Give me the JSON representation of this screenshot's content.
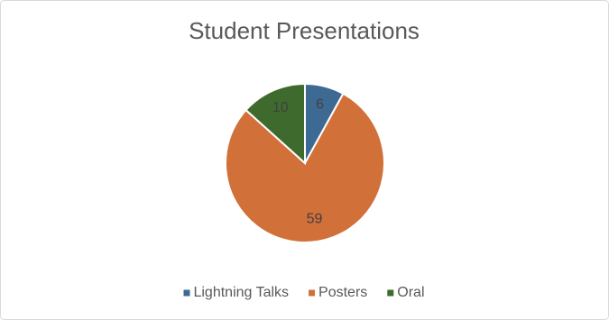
{
  "chart_data": {
    "type": "pie",
    "title": "Student Presentations",
    "categories": [
      "Lightning Talks",
      "Posters",
      "Oral"
    ],
    "values": [
      6,
      59,
      10
    ],
    "colors": [
      "#3d6a93",
      "#d2703a",
      "#3e6b2d"
    ],
    "legend": "bottom"
  }
}
